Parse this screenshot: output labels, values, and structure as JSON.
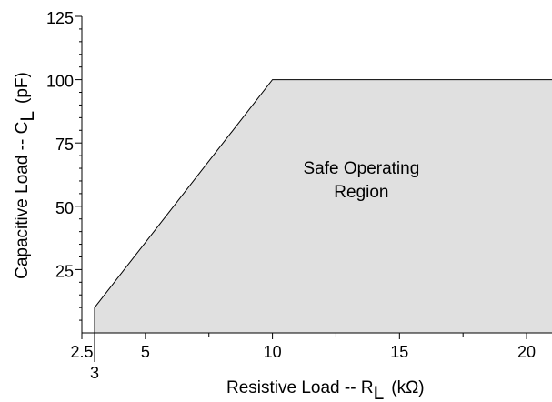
{
  "chart_data": {
    "type": "area",
    "title": "",
    "xlabel": {
      "prefix": "Resistive Load -- R",
      "subscript": "L",
      "unit": "(kΩ)"
    },
    "ylabel": {
      "prefix": "Capacitive Load -- C",
      "subscript": "L",
      "unit": "(pF)"
    },
    "xlim": [
      2.5,
      21
    ],
    "ylim": [
      0,
      125
    ],
    "x_ticks": [
      {
        "value": 2.5,
        "label": "2.5"
      },
      {
        "value": 5,
        "label": "5"
      },
      {
        "value": 10,
        "label": "10"
      },
      {
        "value": 15,
        "label": "15"
      },
      {
        "value": 20,
        "label": "20"
      }
    ],
    "x_minor_ticks": [
      7.5,
      12.5,
      17.5
    ],
    "x_extra_tick": {
      "value": 3,
      "label": "3"
    },
    "y_ticks": [
      {
        "value": 25,
        "label": "25"
      },
      {
        "value": 50,
        "label": "50"
      },
      {
        "value": 75,
        "label": "75"
      },
      {
        "value": 100,
        "label": "100"
      },
      {
        "value": 125,
        "label": "125"
      }
    ],
    "y_minor_step": 5,
    "series": [
      {
        "points": [
          {
            "x": 3,
            "y": 0
          },
          {
            "x": 3,
            "y": 10
          },
          {
            "x": 10,
            "y": 100
          },
          {
            "x": 21,
            "y": 100
          },
          {
            "x": 21,
            "y": 0
          }
        ],
        "fill": "#e0e0e0",
        "stroke": "#000000"
      }
    ],
    "annotations": [
      {
        "lines": [
          "Safe Operating",
          "Region"
        ],
        "x": 13.5,
        "y": 55
      }
    ],
    "grid": false
  }
}
